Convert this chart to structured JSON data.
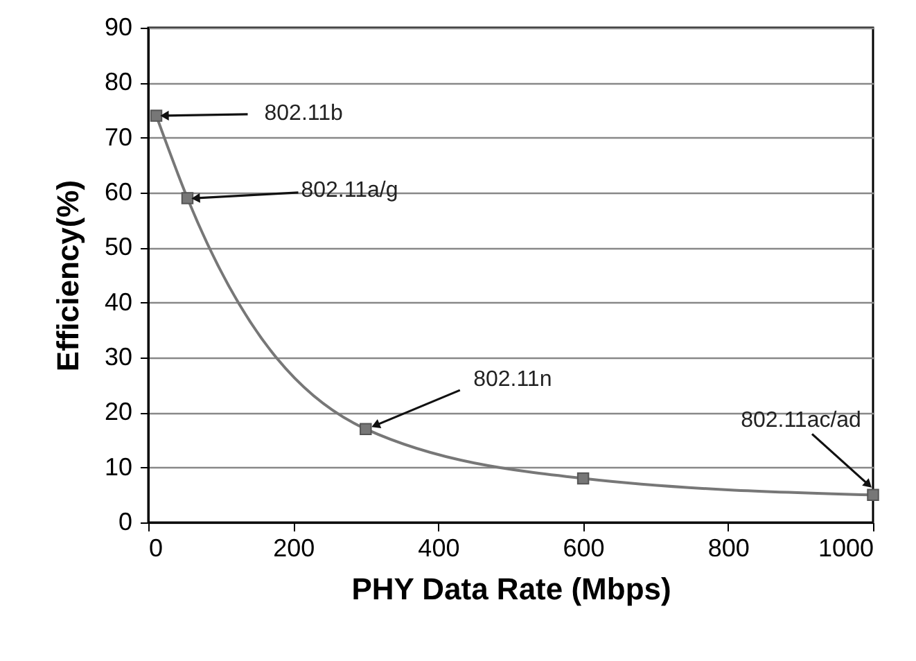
{
  "chart_data": {
    "type": "line",
    "xlabel": "PHY Data Rate (Mbps)",
    "ylabel": "Efficiency(%)",
    "x": [
      11,
      54,
      300,
      600,
      1000
    ],
    "series": [
      {
        "color": "#777777",
        "values": [
          74,
          59,
          17,
          8,
          5
        ]
      }
    ],
    "xlim": [
      0,
      1000
    ],
    "xticks": [
      0,
      200,
      400,
      600,
      800,
      1000
    ],
    "ylim": [
      0,
      90
    ],
    "yticks": [
      0,
      10,
      20,
      30,
      40,
      50,
      60,
      70,
      80,
      90
    ],
    "grid": "y",
    "marker": "square",
    "line_style": "solid",
    "annotations": [
      {
        "text": "802.11b",
        "x": 11,
        "y": 74
      },
      {
        "text": "802.11a/g",
        "x": 54,
        "y": 59
      },
      {
        "text": "802.11n",
        "x": 300,
        "y": 17
      },
      {
        "text": "802.11ac/ad",
        "x": 1000,
        "y": 5
      }
    ]
  }
}
